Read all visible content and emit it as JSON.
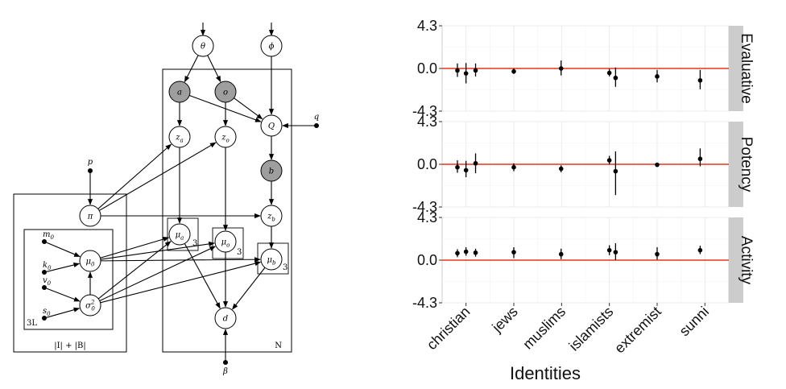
{
  "graphical_model": {
    "nodes": [
      {
        "id": "theta",
        "label": "θ",
        "observed": false
      },
      {
        "id": "phi",
        "label": "ϕ",
        "observed": false
      },
      {
        "id": "a",
        "label": "a",
        "observed": true
      },
      {
        "id": "o",
        "label": "o",
        "observed": true
      },
      {
        "id": "Q",
        "label": "Q",
        "observed": false
      },
      {
        "id": "q",
        "label": "q",
        "observed": false,
        "point": true
      },
      {
        "id": "za",
        "label": "z",
        "sub": "a",
        "observed": false
      },
      {
        "id": "zo",
        "label": "z",
        "sub": "o",
        "observed": false
      },
      {
        "id": "b",
        "label": "b",
        "observed": true
      },
      {
        "id": "zb",
        "label": "z",
        "sub": "b",
        "observed": false
      },
      {
        "id": "p",
        "label": "p",
        "observed": false,
        "point": true
      },
      {
        "id": "pi",
        "label": "π",
        "observed": false
      },
      {
        "id": "m0",
        "label": "m",
        "sub": "0",
        "observed": false,
        "point": true
      },
      {
        "id": "k0",
        "label": "k",
        "sub": "0",
        "observed": false,
        "point": true
      },
      {
        "id": "v0",
        "label": "v",
        "sub": "0",
        "observed": false,
        "point": true
      },
      {
        "id": "s0",
        "label": "s",
        "sub": "0",
        "observed": false,
        "point": true
      },
      {
        "id": "mu0",
        "label": "μ",
        "sub": "0",
        "observed": false
      },
      {
        "id": "sigma0",
        "label": "σ",
        "sub": "0",
        "sup": "2",
        "observed": false
      },
      {
        "id": "mua",
        "label": "μ",
        "sub": "a",
        "observed": false
      },
      {
        "id": "muo",
        "label": "μ",
        "sub": "o",
        "observed": false
      },
      {
        "id": "mub",
        "label": "μ",
        "sub": "b",
        "observed": false
      },
      {
        "id": "d",
        "label": "d",
        "observed": false
      },
      {
        "id": "beta",
        "label": "β",
        "observed": false,
        "point": true
      }
    ],
    "edges": [
      [
        "theta",
        "a"
      ],
      [
        "theta",
        "o"
      ],
      [
        "phi",
        "Q"
      ],
      [
        "a",
        "Q"
      ],
      [
        "o",
        "Q"
      ],
      [
        "q",
        "Q"
      ],
      [
        "a",
        "za"
      ],
      [
        "o",
        "zo"
      ],
      [
        "Q",
        "b"
      ],
      [
        "b",
        "zb"
      ],
      [
        "p",
        "pi"
      ],
      [
        "pi",
        "za"
      ],
      [
        "pi",
        "zo"
      ],
      [
        "pi",
        "zb"
      ],
      [
        "m0",
        "mu0"
      ],
      [
        "k0",
        "mu0"
      ],
      [
        "v0",
        "sigma0"
      ],
      [
        "s0",
        "sigma0"
      ],
      [
        "sigma0",
        "mu0"
      ],
      [
        "mu0",
        "mua"
      ],
      [
        "mu0",
        "muo"
      ],
      [
        "mu0",
        "mub"
      ],
      [
        "sigma0",
        "mua"
      ],
      [
        "sigma0",
        "muo"
      ],
      [
        "sigma0",
        "mub"
      ],
      [
        "za",
        "mua"
      ],
      [
        "zo",
        "muo"
      ],
      [
        "zb",
        "mub"
      ],
      [
        "mua",
        "d"
      ],
      [
        "muo",
        "d"
      ],
      [
        "mub",
        "d"
      ],
      [
        "beta",
        "d"
      ]
    ],
    "plates": {
      "identities": "|I| + |B|",
      "hyper": "3L",
      "N": "N",
      "mu_repeat": "3"
    }
  },
  "chart_data": {
    "type": "scatter",
    "subtype": "pointrange-facets",
    "xlabel": "Identities",
    "ylabel": "",
    "categories": [
      "christian",
      "jews",
      "muslims",
      "islamists",
      "extremist",
      "sunni"
    ],
    "yticks": [
      -4.3,
      0.0,
      4.3
    ],
    "ytick_labels": [
      "-4.3",
      "0.0",
      "4.3"
    ],
    "ylim": [
      -4.3,
      4.3
    ],
    "xlim": [
      0.5,
      6.5
    ],
    "reference_line": 0,
    "reference_color": "#e8331c",
    "grid": true,
    "panels": [
      {
        "name": "Evaluative",
        "points": [
          {
            "x": 0.82,
            "y": -0.2,
            "lo": -0.85,
            "hi": 0.5
          },
          {
            "x": 1.0,
            "y": -0.5,
            "lo": -1.5,
            "hi": 0.55
          },
          {
            "x": 1.2,
            "y": -0.2,
            "lo": -0.8,
            "hi": 0.5
          },
          {
            "x": 2.0,
            "y": -0.3,
            "lo": -0.55,
            "hi": 0.0
          },
          {
            "x": 2.99,
            "y": 0.0,
            "lo": -0.7,
            "hi": 0.8
          },
          {
            "x": 4.0,
            "y": -0.45,
            "lo": -0.8,
            "hi": -0.05
          },
          {
            "x": 4.13,
            "y": -0.95,
            "lo": -1.85,
            "hi": 0.1
          },
          {
            "x": 5.0,
            "y": -0.8,
            "lo": -1.4,
            "hi": -0.15
          },
          {
            "x": 5.9,
            "y": -1.2,
            "lo": -2.1,
            "hi": -0.15
          }
        ]
      },
      {
        "name": "Potency",
        "points": [
          {
            "x": 0.82,
            "y": -0.3,
            "lo": -0.85,
            "hi": 0.4
          },
          {
            "x": 1.0,
            "y": -0.6,
            "lo": -1.3,
            "hi": 0.35
          },
          {
            "x": 1.2,
            "y": 0.1,
            "lo": -0.9,
            "hi": 1.1
          },
          {
            "x": 2.0,
            "y": -0.3,
            "lo": -0.7,
            "hi": 0.1
          },
          {
            "x": 2.99,
            "y": -0.45,
            "lo": -0.8,
            "hi": -0.1
          },
          {
            "x": 4.0,
            "y": 0.4,
            "lo": 0.0,
            "hi": 0.85
          },
          {
            "x": 4.13,
            "y": -0.7,
            "lo": -3.1,
            "hi": 1.3
          },
          {
            "x": 5.0,
            "y": -0.05,
            "lo": -0.25,
            "hi": 0.15
          },
          {
            "x": 5.9,
            "y": 0.55,
            "lo": -0.2,
            "hi": 1.6
          }
        ]
      },
      {
        "name": "Activity",
        "points": [
          {
            "x": 0.82,
            "y": 0.7,
            "lo": 0.3,
            "hi": 1.1
          },
          {
            "x": 1.0,
            "y": 0.85,
            "lo": 0.45,
            "hi": 1.3
          },
          {
            "x": 1.2,
            "y": 0.75,
            "lo": 0.35,
            "hi": 1.15
          },
          {
            "x": 2.0,
            "y": 0.8,
            "lo": 0.2,
            "hi": 1.3
          },
          {
            "x": 2.99,
            "y": 0.6,
            "lo": 0.1,
            "hi": 1.15
          },
          {
            "x": 4.0,
            "y": 1.0,
            "lo": 0.5,
            "hi": 1.5
          },
          {
            "x": 4.13,
            "y": 0.8,
            "lo": 0.0,
            "hi": 1.7
          },
          {
            "x": 5.0,
            "y": 0.6,
            "lo": 0.05,
            "hi": 1.3
          },
          {
            "x": 5.9,
            "y": 1.0,
            "lo": 0.6,
            "hi": 1.45
          }
        ]
      }
    ]
  }
}
